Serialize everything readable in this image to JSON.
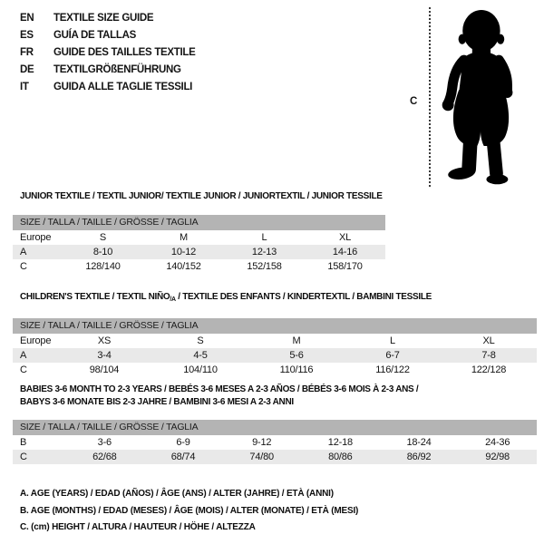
{
  "header": {
    "languages": [
      {
        "code": "EN",
        "title": "TEXTILE SIZE GUIDE"
      },
      {
        "code": "ES",
        "title": "GUÍA DE TALLAS"
      },
      {
        "code": "FR",
        "title": "GUIDE DES TAILLES TEXTILE"
      },
      {
        "code": "DE",
        "title": "TEXTILGRÖßENFÜHRUNG"
      },
      {
        "code": "IT",
        "title": "GUIDA ALLE TAGLIE TESSILI"
      }
    ],
    "figure": {
      "icon": "toddler-silhouette",
      "measure_label": "C"
    }
  },
  "colors": {
    "size_bar_gray": "#b4b4b4",
    "shaded_row_gray": "#e9e9e9",
    "text": "#141414"
  },
  "tables": [
    {
      "name": "junior",
      "title_lines": [
        [
          {
            "text": "JUNIOR TEXTILE / TEXTIL JUNIOR/ TEXTILE JUNIOR / JUNIORTEXTIL / JUNIOR TESSILE",
            "sub": false
          }
        ]
      ],
      "size_header": "SIZE / TALLA / TAILLE / GRÖSSE / TAGLIA",
      "rows": [
        {
          "label": "Europe",
          "cells": [
            "S",
            "M",
            "L",
            "XL"
          ],
          "shaded": false
        },
        {
          "label": "A",
          "cells": [
            "8-10",
            "10-12",
            "12-13",
            "14-16"
          ],
          "shaded": true
        },
        {
          "label": "C",
          "cells": [
            "128/140",
            "140/152",
            "152/158",
            "158/170"
          ],
          "shaded": false
        }
      ]
    },
    {
      "name": "children",
      "title_lines": [
        [
          {
            "text": "CHILDREN'S TEXTILE / TEXTIL NIÑO",
            "sub": false
          },
          {
            "text": "/A",
            "sub": true
          },
          {
            "text": " / TEXTILE DES ENFANTS / KINDERTEXTIL / BAMBINI TESSILE",
            "sub": false
          }
        ]
      ],
      "size_header": "SIZE / TALLA / TAILLE / GRÖSSE / TAGLIA",
      "rows": [
        {
          "label": "Europe",
          "cells": [
            "XS",
            "S",
            "M",
            "L",
            "XL"
          ],
          "shaded": false
        },
        {
          "label": "A",
          "cells": [
            "3-4",
            "4-5",
            "5-6",
            "6-7",
            "7-8"
          ],
          "shaded": true
        },
        {
          "label": "C",
          "cells": [
            "98/104",
            "104/110",
            "110/116",
            "116/122",
            "122/128"
          ],
          "shaded": false
        }
      ]
    },
    {
      "name": "babies",
      "title_lines": [
        [
          {
            "text": "BABIES 3-6 MONTH TO 2-3 YEARS / BEBÉS 3-6 MESES A 2-3 AÑOS / BÉBÉS 3-6 MOIS À 2-3 ANS /",
            "sub": false
          }
        ],
        [
          {
            "text": "BABYS 3-6 MONATE BIS 2-3 JAHRE / BAMBINI 3-6 MESI A 2-3 ANNI",
            "sub": false
          }
        ]
      ],
      "size_header": "SIZE / TALLA / TAILLE / GRÖSSE / TAGLIA",
      "rows": [
        {
          "label": "B",
          "cells": [
            "3-6",
            "6-9",
            "9-12",
            "12-18",
            "18-24",
            "24-36"
          ],
          "shaded": false
        },
        {
          "label": "C",
          "cells": [
            "62/68",
            "68/74",
            "74/80",
            "80/86",
            "86/92",
            "92/98"
          ],
          "shaded": true
        }
      ]
    }
  ],
  "footnotes": [
    "A. AGE (YEARS) / EDAD (AÑOS) / ÂGE (ANS) / ALTER (JAHRE) / ETÀ (ANNI)",
    "B. AGE (MONTHS) / EDAD (MESES) / ÂGE (MOIS) / ALTER (MONATE) / ETÀ (MESI)",
    "C. (cm) HEIGHT / ALTURA / HAUTEUR / HÖHE / ALTEZZA"
  ]
}
